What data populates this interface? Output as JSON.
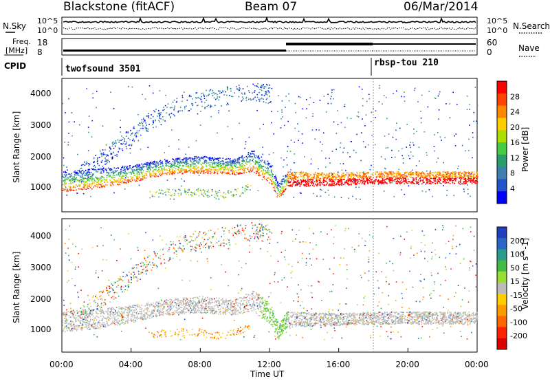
{
  "header": {
    "station": "Blackstone (fitACF)",
    "beam": "Beam 07",
    "date": "06/Mar/2014"
  },
  "left_labels": {
    "nsky": "N.Sky",
    "freq_line1": "Freq.",
    "freq_line2": "[MHz]",
    "cpid": "CPID"
  },
  "right_labels": {
    "nsearch": "N.Search",
    "nave": "Nave"
  },
  "noise_axis": {
    "left_ticks": [
      "10^5",
      "10^0"
    ],
    "right_ticks": [
      "10^5",
      "10^0"
    ]
  },
  "freq_axis": {
    "left_ticks": [
      "18",
      "8"
    ],
    "right_ticks": [
      "60",
      "0"
    ]
  },
  "cpid_blocks": [
    {
      "label": "twofsound 3501",
      "start_hour": 0
    },
    {
      "label": "rbsp-tou 210",
      "start_hour": 18
    }
  ],
  "x_axis": {
    "label": "Time UT",
    "ticks": [
      "00:00",
      "04:00",
      "08:00",
      "12:00",
      "16:00",
      "20:00",
      "00:00"
    ]
  },
  "panels": {
    "power": {
      "ylabel": "Slant Range [km]",
      "yticks": [
        "4000",
        "3000",
        "2000",
        "1000"
      ]
    },
    "velocity": {
      "ylabel": "Slant Range [km]",
      "yticks": [
        "4000",
        "3000",
        "2000",
        "1000"
      ]
    }
  },
  "colorbars": {
    "power": {
      "title": "Power [dB]",
      "labels": [
        "28",
        "24",
        "20",
        "16",
        "12",
        "8",
        "4"
      ],
      "colors": [
        "#ff0000",
        "#ff4400",
        "#ff8800",
        "#ffcc00",
        "#aadd00",
        "#44cc44",
        "#2a9d6a",
        "#3f7faf",
        "#2255cc",
        "#0000ff"
      ]
    },
    "velocity": {
      "title": "Velocity [m s^-1]",
      "labels": [
        "200",
        "100",
        "50",
        "15",
        "-15",
        "-50",
        "-100",
        "-200"
      ],
      "colors": [
        "#1f3fbf",
        "#2a66c8",
        "#2b9c8a",
        "#44bb44",
        "#99dd33",
        "#bbbbbb",
        "#ffcc00",
        "#ff9900",
        "#ff6600",
        "#ff2200",
        "#dd0000"
      ]
    }
  },
  "chart_data": {
    "type": "heatmap",
    "x_range_hours": [
      0,
      24
    ],
    "y_range_km": [
      180,
      4500
    ],
    "description_bands": [
      {
        "name": "main_echo_low",
        "t": [
          0,
          2,
          4,
          6,
          8,
          10,
          11,
          12,
          12.5,
          13,
          16,
          18,
          24
        ],
        "range_km": [
          850,
          950,
          1150,
          1400,
          1450,
          1400,
          1500,
          1100,
          600,
          1000,
          1050,
          1100,
          1100
        ]
      },
      {
        "name": "main_echo_high",
        "t": [
          0,
          2,
          4,
          6,
          8,
          10,
          11,
          12,
          12.5,
          13,
          16,
          18,
          24
        ],
        "range_km": [
          1500,
          1600,
          1700,
          1900,
          2000,
          1900,
          2200,
          1800,
          1100,
          1500,
          1450,
          1500,
          1500
        ]
      },
      {
        "name": "mid_patch",
        "t": [
          5,
          6,
          8,
          9,
          10,
          11
        ],
        "range_km": [
          600,
          700,
          700,
          600,
          700,
          900
        ]
      },
      {
        "name": "upper_band",
        "t": [
          1,
          3,
          4,
          5,
          6,
          7,
          8,
          9,
          10,
          11,
          12
        ],
        "range_km": [
          1700,
          2500,
          2900,
          3400,
          3700,
          4000,
          4100,
          4200,
          4300,
          4400,
          4300
        ]
      }
    ],
    "power_range_db": [
      0,
      30
    ],
    "velocity_range_ms": [
      -250,
      250
    ]
  }
}
